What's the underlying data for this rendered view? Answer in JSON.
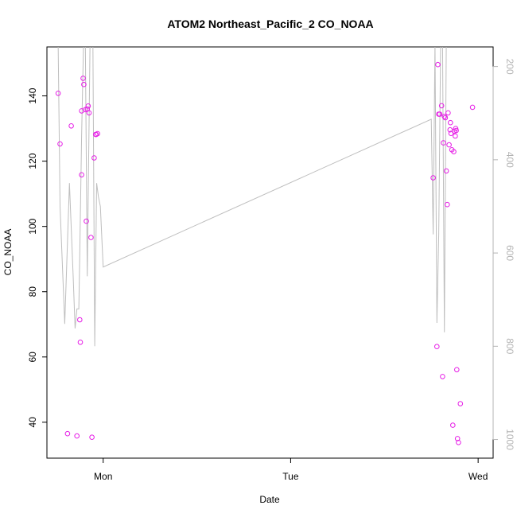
{
  "chart_data": {
    "type": "scatter",
    "title": "ATOM2 Northeast_Pacific_2 CO_NOAA",
    "xlabel": "Date",
    "ylabel": "CO_NOAA",
    "x_ticks": [
      {
        "label": "Mon",
        "day": 1.0
      },
      {
        "label": "Tue",
        "day": 2.0
      },
      {
        "label": "Wed",
        "day": 3.0
      }
    ],
    "xlim_days": [
      0.7,
      3.08
    ],
    "ylim": [
      29,
      155
    ],
    "y_ticks": [
      40,
      60,
      80,
      100,
      120,
      140
    ],
    "y2_ticks": [
      200,
      400,
      600,
      800,
      1000
    ],
    "y2lim": [
      1040,
      158
    ],
    "colors": {
      "points": "#e61ee6",
      "line": "#bebebe",
      "axis": "#000000",
      "secondary_axis": "#b3b3b3"
    },
    "series": [
      {
        "kind": "points",
        "days": [
          0.76,
          0.77,
          0.81,
          0.83,
          0.86,
          0.875,
          0.878,
          0.885,
          0.885,
          0.893,
          0.897,
          0.905,
          0.91,
          0.915,
          0.92,
          0.925,
          0.935,
          0.94,
          0.952,
          0.96,
          0.962,
          0.97
        ],
        "values": [
          140.8,
          125.3,
          36.5,
          130.8,
          35.8,
          71.4,
          64.5,
          115.8,
          135.4,
          145.4,
          143.5,
          135.8,
          101.6,
          136.0,
          136.9,
          134.8,
          96.6,
          35.4,
          121.0,
          128.2,
          128.2,
          128.4
        ]
      },
      {
        "kind": "points",
        "days": [
          2.76,
          2.78,
          2.785,
          2.79,
          2.795,
          2.805,
          2.81,
          2.815,
          2.82,
          2.825,
          2.83,
          2.835,
          2.84,
          2.845,
          2.85,
          2.852,
          2.855,
          2.86,
          2.865,
          2.87,
          2.873,
          2.878,
          2.88,
          2.883,
          2.886,
          2.89,
          2.895,
          2.905,
          2.97
        ],
        "values": [
          114.9,
          63.2,
          149.6,
          134.4,
          134.4,
          137.0,
          54.0,
          125.6,
          133.7,
          133.3,
          117.0,
          106.7,
          134.8,
          125.0,
          129.6,
          131.8,
          128.5,
          123.5,
          39.1,
          122.9,
          129.2,
          127.7,
          130.0,
          129.4,
          56.1,
          35.0,
          33.8,
          45.7,
          136.5
        ]
      },
      {
        "kind": "line",
        "axis": "right",
        "days": [
          0.76,
          0.77,
          0.795,
          0.82,
          0.84,
          0.85,
          0.86,
          0.87,
          0.875,
          0.885,
          0.895,
          0.905,
          0.915,
          0.93,
          0.945,
          0.955,
          0.965,
          0.975,
          0.985,
          1.0,
          2.75,
          2.76,
          2.77,
          2.78,
          2.79,
          2.8,
          2.81,
          2.82,
          2.83,
          2.84,
          2.85,
          2.86,
          2.87,
          2.88,
          2.89,
          2.9,
          2.91,
          2.92,
          2.93,
          2.94,
          2.95,
          2.96,
          2.97,
          2.98
        ],
        "values": [
          150,
          500,
          752,
          450,
          650,
          762,
          720,
          720,
          600,
          350,
          150,
          150,
          650,
          150,
          150,
          800,
          450,
          480,
          500,
          630,
          313,
          560,
          150,
          750,
          560,
          150,
          150,
          770,
          150,
          150,
          150,
          150,
          150,
          150,
          150,
          150,
          150,
          150,
          150,
          150,
          150,
          150,
          150,
          150
        ]
      }
    ]
  }
}
